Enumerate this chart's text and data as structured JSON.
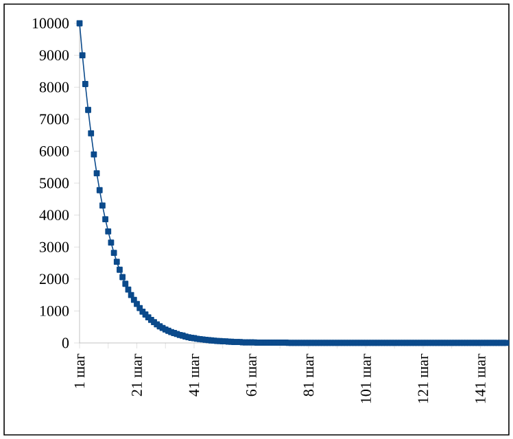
{
  "chart_data": {
    "type": "line",
    "marker": "square",
    "line_style": "solid",
    "grid": false,
    "legend": false,
    "categories": [
      "1 шаг",
      null,
      null,
      null,
      null,
      null,
      null,
      null,
      null,
      null,
      null,
      null,
      null,
      null,
      null,
      null,
      null,
      null,
      null,
      null,
      "21 шаг",
      null,
      null,
      null,
      null,
      null,
      null,
      null,
      null,
      null,
      null,
      null,
      null,
      null,
      null,
      null,
      null,
      null,
      null,
      null,
      "41 шаг",
      null,
      null,
      null,
      null,
      null,
      null,
      null,
      null,
      null,
      null,
      null,
      null,
      null,
      null,
      null,
      null,
      null,
      null,
      null,
      "61 шаг",
      null,
      null,
      null,
      null,
      null,
      null,
      null,
      null,
      null,
      null,
      null,
      null,
      null,
      null,
      null,
      null,
      null,
      null,
      null,
      "81 шаг",
      null,
      null,
      null,
      null,
      null,
      null,
      null,
      null,
      null,
      null,
      null,
      null,
      null,
      null,
      null,
      null,
      null,
      null,
      null,
      "101 шаг",
      null,
      null,
      null,
      null,
      null,
      null,
      null,
      null,
      null,
      null,
      null,
      null,
      null,
      null,
      null,
      null,
      null,
      null,
      null,
      "121 шаг",
      null,
      null,
      null,
      null,
      null,
      null,
      null,
      null,
      null,
      null,
      null,
      null,
      null,
      null,
      null,
      null,
      null,
      null,
      null,
      "141 шаг",
      null,
      null,
      null,
      null,
      null,
      null,
      null,
      null,
      null
    ],
    "series": [
      {
        "color": "#0b4a8b",
        "values": [
          10000,
          9000,
          8100,
          7290,
          6560,
          5900,
          5310,
          4780,
          4300,
          3870,
          3490,
          3140,
          2820,
          2540,
          2290,
          2060,
          1850,
          1670,
          1500,
          1350,
          1220,
          1090,
          980,
          890,
          800,
          720,
          650,
          580,
          520,
          470,
          420,
          380,
          340,
          310,
          280,
          250,
          230,
          200,
          180,
          160,
          150,
          130,
          120,
          110,
          100,
          90,
          80,
          70,
          60,
          60,
          50,
          50,
          40,
          40,
          30,
          30,
          30,
          20,
          20,
          20,
          20,
          20,
          10,
          10,
          10,
          10,
          10,
          10,
          10,
          10,
          10,
          10,
          10,
          0,
          0,
          0,
          0,
          0,
          0,
          0,
          0,
          0,
          0,
          0,
          0,
          0,
          0,
          0,
          0,
          0,
          0,
          0,
          0,
          0,
          0,
          0,
          0,
          0,
          0,
          0,
          0,
          0,
          0,
          0,
          0,
          0,
          0,
          0,
          0,
          0,
          0,
          0,
          0,
          0,
          0,
          0,
          0,
          0,
          0,
          0,
          0,
          0,
          0,
          0,
          0,
          0,
          0,
          0,
          0,
          0,
          0,
          0,
          0,
          0,
          0,
          0,
          0,
          0,
          0,
          0,
          0,
          0,
          0,
          0,
          0,
          0,
          0,
          0,
          0,
          0
        ]
      }
    ],
    "ylim": [
      0,
      10000
    ],
    "yticks": [
      0,
      1000,
      2000,
      3000,
      4000,
      5000,
      6000,
      7000,
      8000,
      9000,
      10000
    ]
  }
}
